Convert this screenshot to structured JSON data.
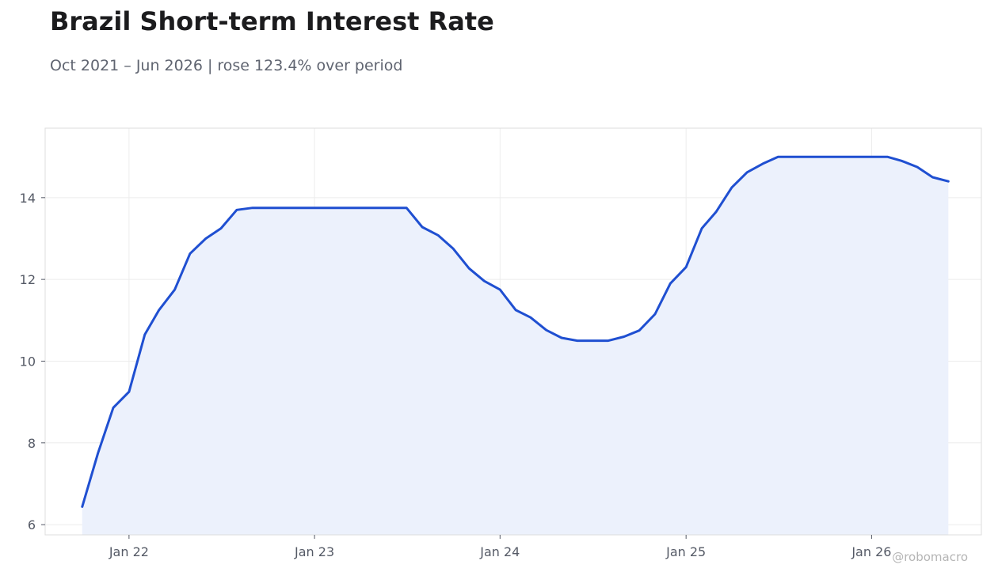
{
  "header": {
    "title": "Brazil Short-term Interest Rate",
    "subtitle": "Oct 2021 – Jun 2026 | rose 123.4% over period"
  },
  "watermark": "@robomacro",
  "colors": {
    "line": "#1f4fd1",
    "fill": "#ecf1fc",
    "grid": "#ececec",
    "frame": "#dddddd"
  },
  "chart_data": {
    "type": "area",
    "title": "Brazil Short-term Interest Rate",
    "xlabel": "",
    "ylabel": "",
    "grid": true,
    "ylim": [
      5.75,
      15.7
    ],
    "xlim": [
      "2021-07-20",
      "2026-08-05"
    ],
    "x_ticks": [
      {
        "date": "2022-01-01",
        "label": "Jan 22"
      },
      {
        "date": "2023-01-01",
        "label": "Jan 23"
      },
      {
        "date": "2024-01-01",
        "label": "Jan 24"
      },
      {
        "date": "2025-01-01",
        "label": "Jan 25"
      },
      {
        "date": "2026-01-01",
        "label": "Jan 26"
      }
    ],
    "y_ticks": [
      6,
      8,
      10,
      12,
      14
    ],
    "series": [
      {
        "x": [
          "2021-10-01",
          "2021-11-01",
          "2021-12-01",
          "2022-01-01",
          "2022-02-01",
          "2022-03-01",
          "2022-04-01",
          "2022-05-01",
          "2022-06-01",
          "2022-07-01",
          "2022-08-01",
          "2022-09-01",
          "2022-10-01",
          "2022-11-01",
          "2022-12-01",
          "2023-01-01",
          "2023-02-01",
          "2023-03-01",
          "2023-04-01",
          "2023-05-01",
          "2023-06-01",
          "2023-07-01",
          "2023-08-01",
          "2023-09-01",
          "2023-10-01",
          "2023-11-01",
          "2023-12-01",
          "2024-01-01",
          "2024-02-01",
          "2024-03-01",
          "2024-04-01",
          "2024-05-01",
          "2024-06-01",
          "2024-07-01",
          "2024-08-01",
          "2024-09-01",
          "2024-10-01",
          "2024-11-01",
          "2024-12-01",
          "2025-01-01",
          "2025-02-01",
          "2025-03-01",
          "2025-04-01",
          "2025-05-01",
          "2025-06-01",
          "2025-07-01",
          "2025-08-01",
          "2025-09-01",
          "2025-10-01",
          "2025-11-01",
          "2025-12-01",
          "2026-01-01",
          "2026-02-01",
          "2026-03-01",
          "2026-04-01",
          "2026-05-01",
          "2026-06-01"
        ],
        "values": [
          6.44,
          7.75,
          8.86,
          9.25,
          10.65,
          11.25,
          11.75,
          12.63,
          13.0,
          13.25,
          13.7,
          13.75,
          13.75,
          13.75,
          13.75,
          13.75,
          13.75,
          13.75,
          13.75,
          13.75,
          13.75,
          13.75,
          13.28,
          13.08,
          12.75,
          12.27,
          11.96,
          11.75,
          11.25,
          11.07,
          10.76,
          10.57,
          10.5,
          10.5,
          10.5,
          10.6,
          10.75,
          11.15,
          11.9,
          12.3,
          13.25,
          13.65,
          14.25,
          14.62,
          14.83,
          15.0,
          15.0,
          15.0,
          15.0,
          15.0,
          15.0,
          15.0,
          15.0,
          14.9,
          14.75,
          14.5,
          14.4
        ]
      }
    ]
  }
}
